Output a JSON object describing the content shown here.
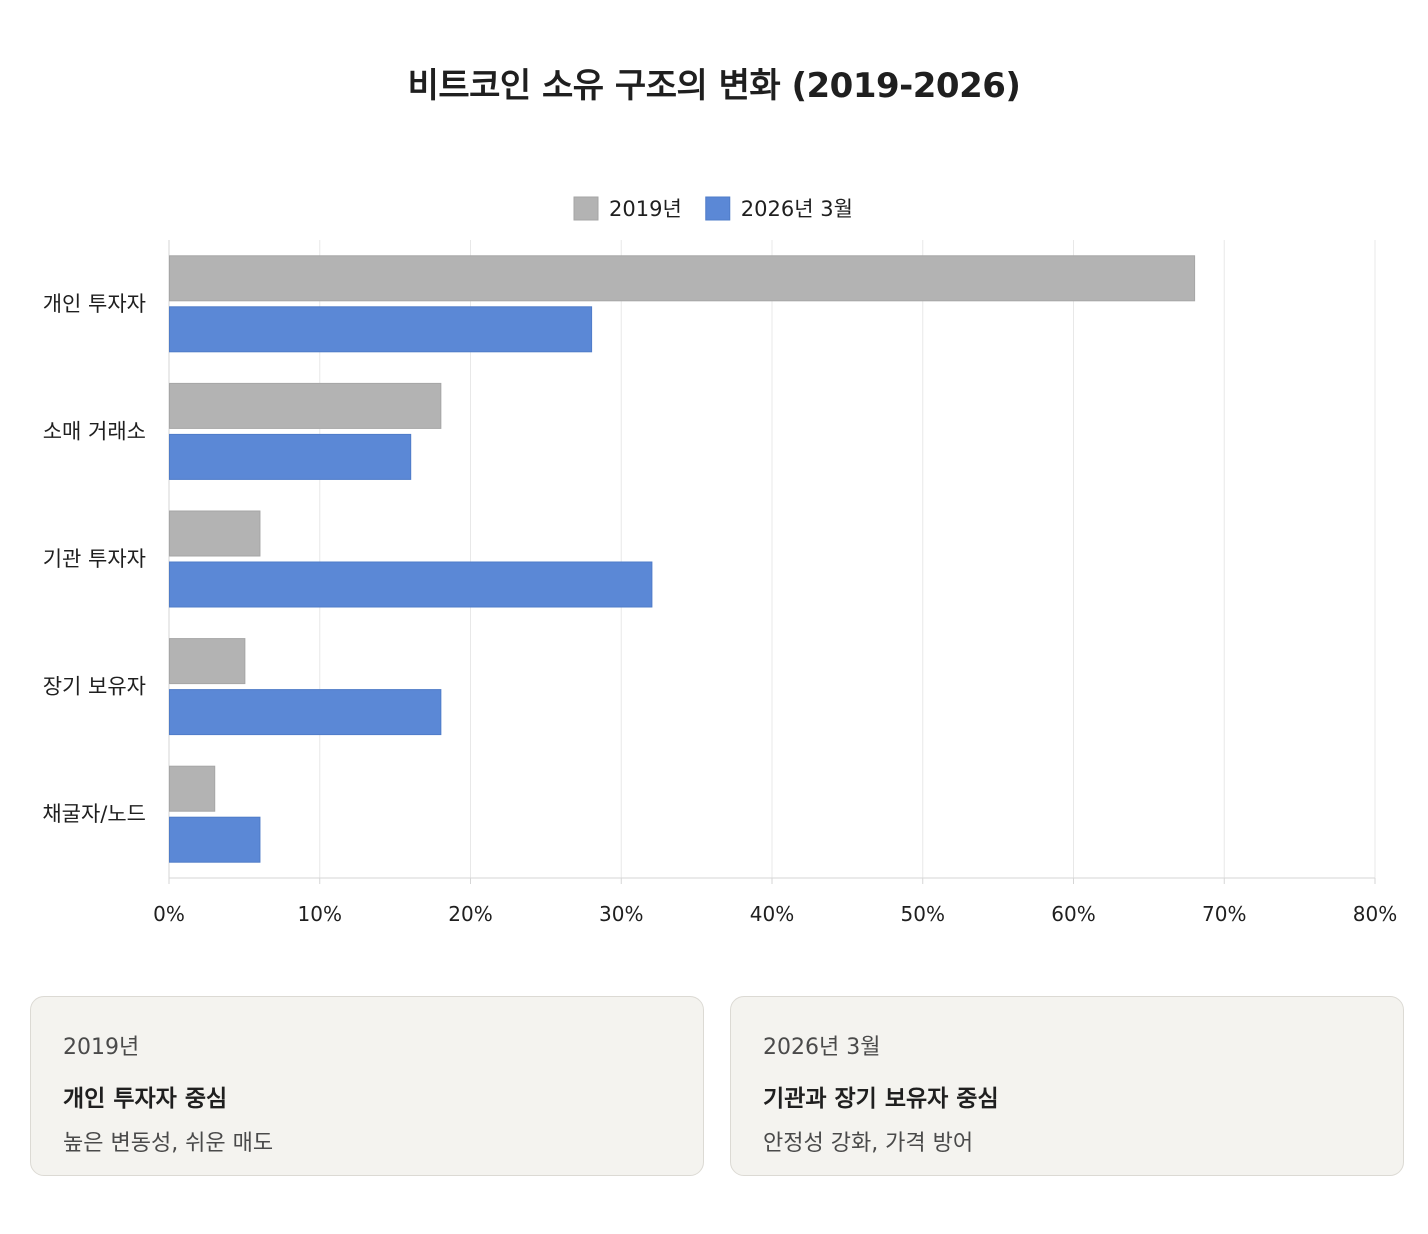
{
  "chart_data": {
    "type": "bar",
    "orientation": "horizontal",
    "title": "비트코인 소유 구조의 변화 (2019-2026)",
    "categories": [
      "개인 투자자",
      "소매 거래소",
      "기관 투자자",
      "장기 보유자",
      "채굴자/노드"
    ],
    "series": [
      {
        "name": "2019년",
        "color": "#b3b3b3",
        "values": [
          68,
          18,
          6,
          5,
          3
        ]
      },
      {
        "name": "2026년 3월",
        "color": "#5b88d6",
        "values": [
          28,
          16,
          32,
          18,
          6
        ]
      }
    ],
    "xlim": [
      0,
      80
    ],
    "xticks": [
      "0%",
      "10%",
      "20%",
      "30%",
      "40%",
      "50%",
      "60%",
      "70%",
      "80%"
    ],
    "legend_position": "top-center",
    "grid": true
  },
  "cards": [
    {
      "label": "2019년",
      "heading": "개인 투자자 중심",
      "description": "높은 변동성, 쉬운 매도"
    },
    {
      "label": "2026년 3월",
      "heading": "기관과 장기 보유자 중심",
      "description": "안정성 강화, 가격 방어"
    }
  ]
}
